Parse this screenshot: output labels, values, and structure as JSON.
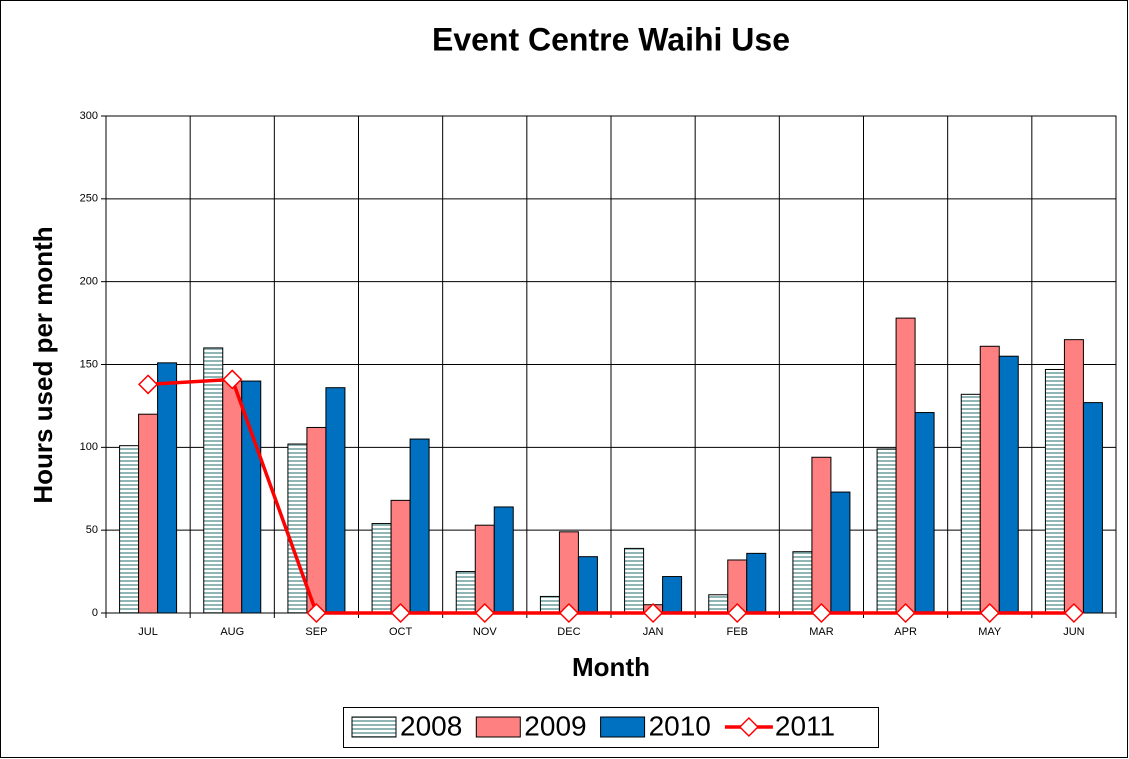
{
  "chart_data": {
    "type": "bar",
    "title": "Event Centre Waihi Use",
    "x_label": "Month",
    "y_label": "Hours used per month",
    "categories": [
      "JUL",
      "AUG",
      "SEP",
      "OCT",
      "NOV",
      "DEC",
      "JAN",
      "FEB",
      "MAR",
      "APR",
      "MAY",
      "JUN"
    ],
    "series": [
      {
        "name": "2008",
        "color": "#8fb5b5",
        "pattern": "horizontal-stripes",
        "values": [
          101,
          160,
          102,
          54,
          25,
          10,
          39,
          11,
          37,
          99,
          132,
          147
        ]
      },
      {
        "name": "2009",
        "color": "#ff8080",
        "values": [
          120,
          140,
          112,
          68,
          53,
          49,
          5,
          32,
          94,
          178,
          161,
          165
        ]
      },
      {
        "name": "2010",
        "color": "#0070c0",
        "values": [
          151,
          140,
          136,
          105,
          64,
          34,
          22,
          36,
          73,
          121,
          155,
          127
        ]
      },
      {
        "name": "2011",
        "color": "#ff0000",
        "type": "line",
        "marker": "diamond",
        "values": [
          138,
          141,
          0,
          0,
          0,
          0,
          0,
          0,
          0,
          0,
          0,
          0
        ]
      }
    ],
    "ylim": [
      0,
      300
    ],
    "yticks": [
      0,
      50,
      100,
      150,
      200,
      250,
      300
    ],
    "grid": true,
    "legend": "bottom"
  }
}
